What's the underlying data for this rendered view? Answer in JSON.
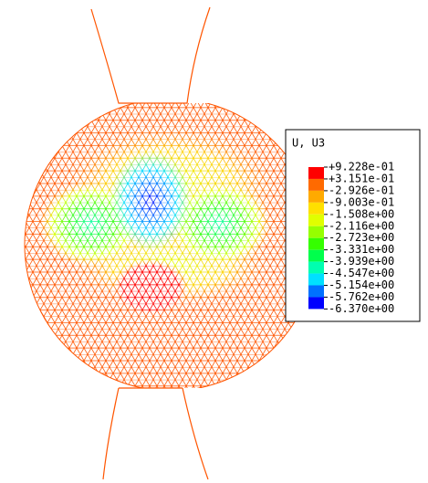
{
  "legend": {
    "title": "U, U3",
    "labels": [
      "+9.228e-01",
      "+3.151e-01",
      "-2.926e-01",
      "-9.003e-01",
      "-1.508e+00",
      "-2.116e+00",
      "-2.723e+00",
      "-3.331e+00",
      "-3.939e+00",
      "-4.547e+00",
      "-5.154e+00",
      "-5.762e+00",
      "-6.370e+00"
    ],
    "colors": [
      "#ff0000",
      "#ff6a00",
      "#ffaa00",
      "#ffe000",
      "#e0ff00",
      "#96ff00",
      "#35ff00",
      "#00ff4c",
      "#00ffb0",
      "#00e0ff",
      "#0070ff",
      "#0000ff"
    ]
  }
}
